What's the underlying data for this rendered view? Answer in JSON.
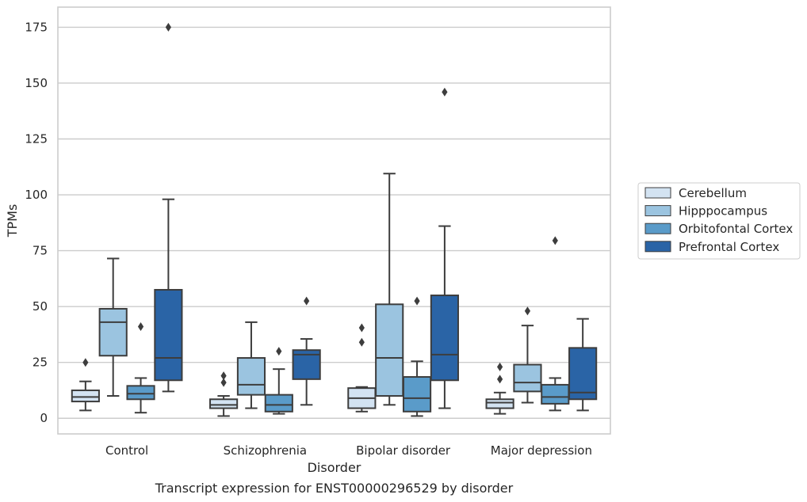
{
  "chart_data": {
    "type": "box",
    "title": "",
    "caption": "Transcript expression for ENST00000296529 by disorder",
    "xlabel": "Disorder",
    "ylabel": "TPMs",
    "ylim": [
      -7,
      184
    ],
    "yticks": [
      0,
      25,
      50,
      75,
      100,
      125,
      150,
      175
    ],
    "grid": "horizontal",
    "legend_position": "right",
    "categories": [
      "Control",
      "Schizophrenia",
      "Bipolar disorder",
      "Major depression"
    ],
    "series": [
      {
        "name": "Cerebellum",
        "color": "#d3e3f2",
        "boxes": [
          {
            "whisker_low": 3.5,
            "q1": 7.5,
            "median": 9.5,
            "q3": 12.5,
            "whisker_high": 16.5,
            "outliers": [
              25
            ]
          },
          {
            "whisker_low": 1,
            "q1": 4.5,
            "median": 6,
            "q3": 8.5,
            "whisker_high": 10,
            "outliers": [
              16,
              19
            ]
          },
          {
            "whisker_low": 3,
            "q1": 4.5,
            "median": 9,
            "q3": 13.5,
            "whisker_high": 14,
            "outliers": [
              34,
              40.5
            ]
          },
          {
            "whisker_low": 2,
            "q1": 4.5,
            "median": 7,
            "q3": 8.5,
            "whisker_high": 11.5,
            "outliers": [
              17.5,
              23
            ]
          }
        ]
      },
      {
        "name": "Hipppocampus",
        "color": "#9bc4e0",
        "boxes": [
          {
            "whisker_low": 10,
            "q1": 28,
            "median": 43,
            "q3": 49,
            "whisker_high": 71.5,
            "outliers": []
          },
          {
            "whisker_low": 4.5,
            "q1": 10.5,
            "median": 15,
            "q3": 27,
            "whisker_high": 43,
            "outliers": []
          },
          {
            "whisker_low": 6,
            "q1": 10,
            "median": 27,
            "q3": 51,
            "whisker_high": 109.5,
            "outliers": []
          },
          {
            "whisker_low": 7,
            "q1": 12,
            "median": 16,
            "q3": 24,
            "whisker_high": 41.5,
            "outliers": [
              48
            ]
          }
        ]
      },
      {
        "name": "Orbitofontal Cortex",
        "color": "#5a9bc9",
        "boxes": [
          {
            "whisker_low": 2.5,
            "q1": 8.5,
            "median": 11,
            "q3": 14.5,
            "whisker_high": 18,
            "outliers": [
              41
            ]
          },
          {
            "whisker_low": 2,
            "q1": 3,
            "median": 6,
            "q3": 10.5,
            "whisker_high": 22,
            "outliers": [
              30
            ]
          },
          {
            "whisker_low": 1,
            "q1": 3,
            "median": 9,
            "q3": 18.5,
            "whisker_high": 25.5,
            "outliers": [
              52.5
            ]
          },
          {
            "whisker_low": 3.5,
            "q1": 6.5,
            "median": 9.5,
            "q3": 15,
            "whisker_high": 18,
            "outliers": [
              79.5
            ]
          }
        ]
      },
      {
        "name": "Prefrontal Cortex",
        "color": "#2a64a6",
        "boxes": [
          {
            "whisker_low": 12,
            "q1": 17,
            "median": 27,
            "q3": 57.5,
            "whisker_high": 98,
            "outliers": [
              175
            ]
          },
          {
            "whisker_low": 6,
            "q1": 17.5,
            "median": 28.5,
            "q3": 30.5,
            "whisker_high": 35.5,
            "outliers": [
              52.5
            ]
          },
          {
            "whisker_low": 4.5,
            "q1": 17,
            "median": 28.5,
            "q3": 55,
            "whisker_high": 86,
            "outliers": [
              146
            ]
          },
          {
            "whisker_low": 3.5,
            "q1": 8.5,
            "median": 11.5,
            "q3": 31.5,
            "whisker_high": 44.5,
            "outliers": []
          }
        ]
      }
    ]
  }
}
